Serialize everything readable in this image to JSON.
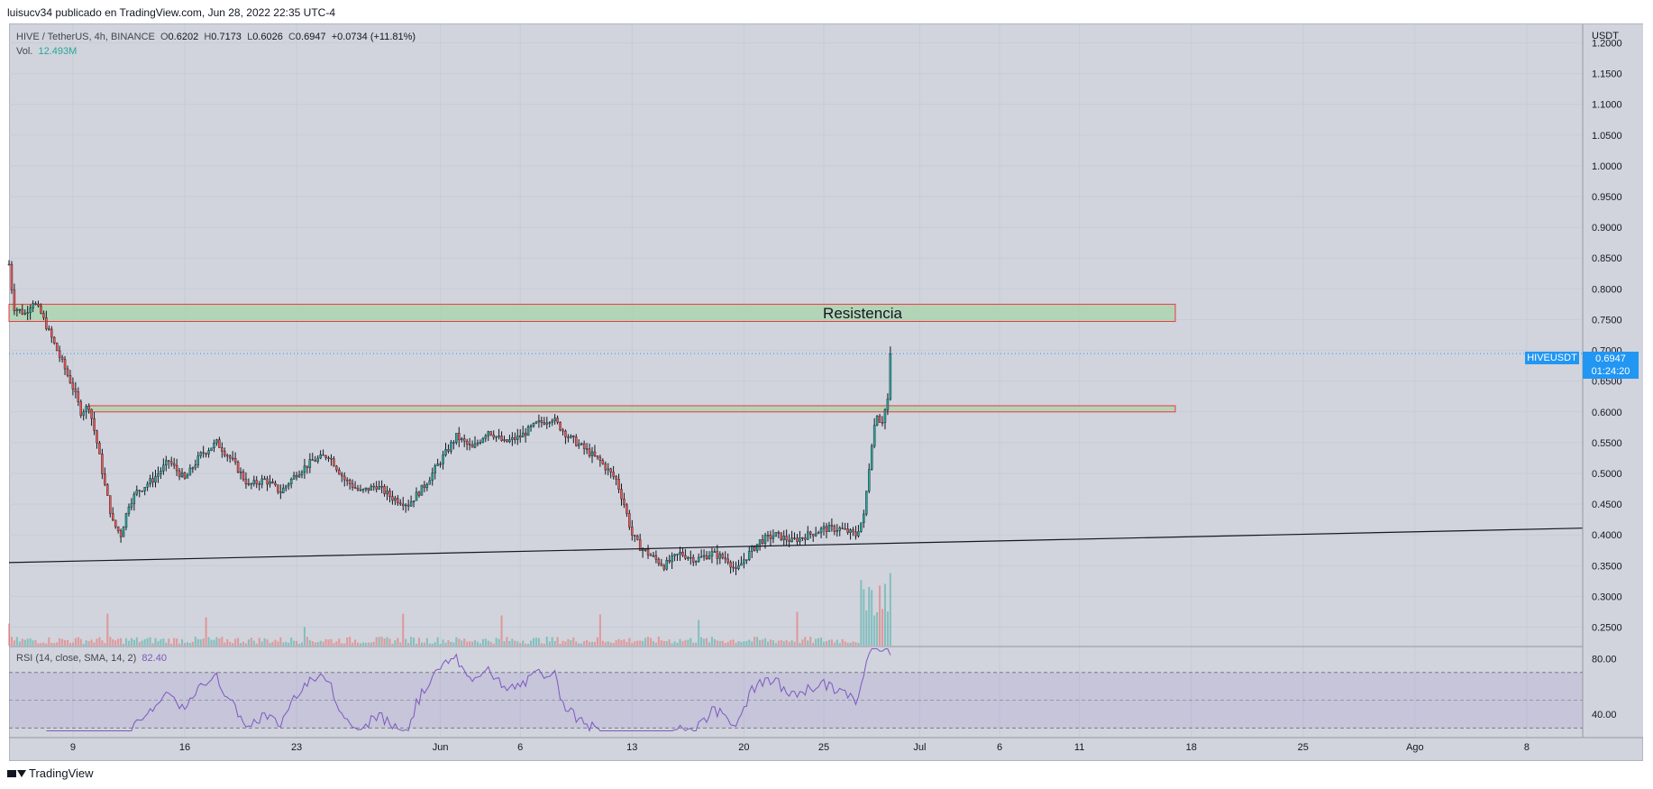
{
  "header": {
    "published": "luisucv34 publicado en TradingView.com, Jun 28, 2022 22:35 UTC-4"
  },
  "legend": {
    "symbol": "HIVE / TetherUS, 4h, BINANCE",
    "open_label": "O",
    "open": "0.6202",
    "high_label": "H",
    "high": "0.7173",
    "low_label": "L",
    "low": "0.6026",
    "close_label": "C",
    "close": "0.6947",
    "change": "+0.0734 (+11.81%)",
    "vol_label": "Vol.",
    "vol": "12.493M",
    "rsi_label": "RSI (14, close, SMA, 14, 2)",
    "rsi": "82.40"
  },
  "price_tag": {
    "symbol": "HIVEUSDT",
    "price": "0.6947",
    "countdown": "01:24:20"
  },
  "footer": {
    "brand": "TradingView"
  },
  "colors": {
    "up": "#26a69a",
    "down": "#ef5350",
    "rsi": "#7e57c2",
    "zone_fill": "#a5d6a7",
    "zone_border": "#f23645",
    "tag": "#2196f3"
  },
  "chart_data": {
    "type": "candlestick",
    "symbol": "HIVE / TetherUS",
    "interval": "4h",
    "y_unit": "USDT",
    "ylim": [
      0.22,
      1.23
    ],
    "y_ticks": [
      "1.2000",
      "1.1500",
      "1.1000",
      "1.0500",
      "1.0000",
      "0.9500",
      "0.9000",
      "0.8500",
      "0.8000",
      "0.7500",
      "0.7000",
      "0.6500",
      "0.6000",
      "0.5500",
      "0.5000",
      "0.4500",
      "0.4000",
      "0.3500",
      "0.3000",
      "0.2500"
    ],
    "x_ticks": [
      {
        "label": "9",
        "day": 9
      },
      {
        "label": "16",
        "day": 16
      },
      {
        "label": "23",
        "day": 23
      },
      {
        "label": "Jun",
        "day": 32
      },
      {
        "label": "6",
        "day": 37
      },
      {
        "label": "13",
        "day": 44
      },
      {
        "label": "20",
        "day": 51
      },
      {
        "label": "25",
        "day": 56
      },
      {
        "label": "Jul",
        "day": 62
      },
      {
        "label": "6",
        "day": 67
      },
      {
        "label": "11",
        "day": 72
      },
      {
        "label": "18",
        "day": 79
      },
      {
        "label": "25",
        "day": 86
      },
      {
        "label": "Ago",
        "day": 93
      },
      {
        "label": "8",
        "day": 100
      }
    ],
    "x_day_range": [
      5,
      103.5
    ],
    "close_path": [
      [
        5,
        0.84
      ],
      [
        5.3,
        0.77
      ],
      [
        6,
        0.76
      ],
      [
        6.5,
        0.78
      ],
      [
        7,
        0.76
      ],
      [
        7.5,
        0.73
      ],
      [
        8,
        0.7
      ],
      [
        8.5,
        0.67
      ],
      [
        9,
        0.64
      ],
      [
        9.5,
        0.6
      ],
      [
        10,
        0.61
      ],
      [
        10.5,
        0.55
      ],
      [
        11,
        0.48
      ],
      [
        11.5,
        0.42
      ],
      [
        12,
        0.4
      ],
      [
        12.5,
        0.45
      ],
      [
        13,
        0.47
      ],
      [
        14,
        0.49
      ],
      [
        15,
        0.52
      ],
      [
        16,
        0.49
      ],
      [
        17,
        0.53
      ],
      [
        18,
        0.55
      ],
      [
        19,
        0.52
      ],
      [
        20,
        0.48
      ],
      [
        21,
        0.49
      ],
      [
        22,
        0.47
      ],
      [
        23,
        0.5
      ],
      [
        24,
        0.52
      ],
      [
        25,
        0.53
      ],
      [
        26,
        0.49
      ],
      [
        27,
        0.47
      ],
      [
        28,
        0.48
      ],
      [
        29,
        0.46
      ],
      [
        30,
        0.45
      ],
      [
        31,
        0.48
      ],
      [
        32,
        0.52
      ],
      [
        33,
        0.56
      ],
      [
        34,
        0.54
      ],
      [
        35,
        0.57
      ],
      [
        36,
        0.55
      ],
      [
        37,
        0.56
      ],
      [
        38,
        0.58
      ],
      [
        39,
        0.59
      ],
      [
        40,
        0.56
      ],
      [
        41,
        0.54
      ],
      [
        42,
        0.52
      ],
      [
        43,
        0.49
      ],
      [
        43.5,
        0.45
      ],
      [
        44,
        0.4
      ],
      [
        44.5,
        0.38
      ],
      [
        45,
        0.37
      ],
      [
        46,
        0.35
      ],
      [
        47,
        0.37
      ],
      [
        48,
        0.36
      ],
      [
        49,
        0.37
      ],
      [
        50,
        0.36
      ],
      [
        50.5,
        0.34
      ],
      [
        51,
        0.36
      ],
      [
        52,
        0.39
      ],
      [
        53,
        0.4
      ],
      [
        54,
        0.39
      ],
      [
        55,
        0.4
      ],
      [
        56,
        0.41
      ],
      [
        57,
        0.41
      ],
      [
        58,
        0.4
      ],
      [
        58.5,
        0.43
      ],
      [
        59,
        0.55
      ],
      [
        59.3,
        0.6
      ],
      [
        59.6,
        0.58
      ],
      [
        60,
        0.62
      ],
      [
        60.3,
        0.6947
      ]
    ],
    "resistance_zones": [
      {
        "label": "Resistencia",
        "low": 0.747,
        "high": 0.775,
        "start_day": 5,
        "end_day": 78
      },
      {
        "low": 0.6,
        "high": 0.61,
        "start_day": 10,
        "end_day": 78
      }
    ],
    "trendline": {
      "start": [
        5,
        0.355
      ],
      "end": [
        103.5,
        0.411
      ]
    },
    "current_price": 0.6947,
    "rsi": {
      "period": 14,
      "source": "close",
      "smoothing": "SMA",
      "value": 82.4,
      "y_ticks": [
        "80.00",
        "40.00"
      ],
      "ylim": [
        27,
        88
      ],
      "upper": 70,
      "lower": 30
    }
  }
}
